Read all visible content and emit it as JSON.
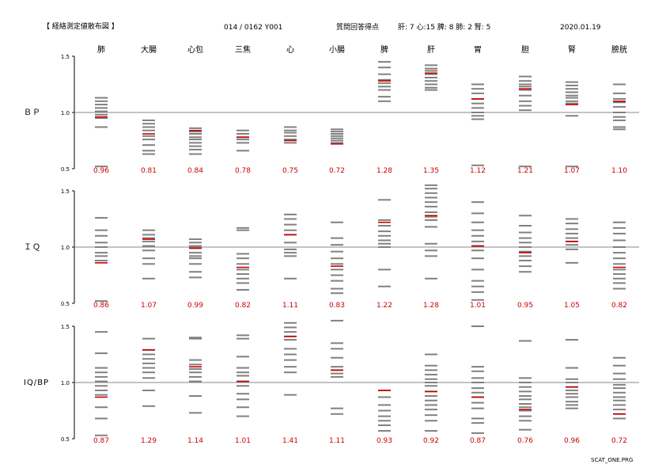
{
  "header": {
    "title": "【 経絡測定値散布図 】",
    "id": "014 / 0162  Y001",
    "score_label": "質問回答得点",
    "scores": "肝: 7 心:15 脾: 8 肺: 2 腎: 5",
    "date": "2020.01.19"
  },
  "footer": "SCAT_ONE.PRG",
  "colors": {
    "marker": "#cc0000",
    "tick": "#808080",
    "value_text": "#cc0000",
    "baseline": "#888888"
  },
  "chart_data": {
    "type": "scatter",
    "categories": [
      "肺",
      "大腸",
      "心包",
      "三焦",
      "心",
      "小腸",
      "脾",
      "肝",
      "胃",
      "胆",
      "腎",
      "膀胱"
    ],
    "ylim": [
      0.5,
      1.5
    ],
    "yticks": [
      "1.5",
      "1.0",
      "0.5"
    ],
    "panels": [
      {
        "label": "ＢＰ",
        "values": [
          0.96,
          0.81,
          0.84,
          0.78,
          0.75,
          0.72,
          1.28,
          1.35,
          1.12,
          1.21,
          1.07,
          1.1
        ],
        "value_labels": [
          "0.96",
          "0.81",
          "0.84",
          "0.78",
          "0.75",
          "0.72",
          "1.28",
          "1.35",
          "1.12",
          "1.21",
          "1.07",
          "1.10"
        ],
        "distributions": [
          [
            1.13,
            1.1,
            1.07,
            1.04,
            1.01,
            0.98,
            0.95,
            0.87,
            0.52
          ],
          [
            0.93,
            0.9,
            0.87,
            0.84,
            0.79,
            0.76,
            0.71,
            0.66,
            0.63
          ],
          [
            0.86,
            0.83,
            0.81,
            0.78,
            0.76,
            0.73,
            0.7,
            0.67,
            0.63
          ],
          [
            0.84,
            0.81,
            0.78,
            0.76,
            0.73,
            0.66
          ],
          [
            0.87,
            0.84,
            0.82,
            0.79,
            0.76,
            0.73
          ],
          [
            0.85,
            0.83,
            0.81,
            0.79,
            0.77,
            0.75,
            0.73
          ],
          [
            1.45,
            1.4,
            1.34,
            1.29,
            1.26,
            1.23,
            1.2,
            1.14,
            1.1
          ],
          [
            1.42,
            1.39,
            1.37,
            1.34,
            1.31,
            1.28,
            1.25,
            1.22,
            1.2
          ],
          [
            1.25,
            1.21,
            1.17,
            1.12,
            1.08,
            1.04,
            1.0,
            0.97,
            0.94,
            0.53
          ],
          [
            1.32,
            1.28,
            1.25,
            1.23,
            1.2,
            1.15,
            1.1,
            1.06,
            1.02,
            0.52
          ],
          [
            1.27,
            1.24,
            1.21,
            1.18,
            1.15,
            1.13,
            1.1,
            1.08,
            0.97,
            0.52
          ],
          [
            1.25,
            1.17,
            1.12,
            1.09,
            1.05,
            1.0,
            0.96,
            0.93,
            0.87,
            0.85
          ]
        ]
      },
      {
        "label": "ＩＱ",
        "values": [
          0.86,
          1.07,
          0.99,
          0.82,
          1.11,
          0.83,
          1.22,
          1.28,
          1.01,
          0.95,
          1.05,
          0.82
        ],
        "value_labels": [
          "0.86",
          "1.07",
          "0.99",
          "0.82",
          "1.11",
          "0.83",
          "1.22",
          "1.28",
          "1.01",
          "0.95",
          "1.05",
          "0.82"
        ],
        "distributions": [
          [
            1.26,
            1.15,
            1.1,
            1.04,
            1.0,
            0.95,
            0.92,
            0.88,
            0.52
          ],
          [
            1.15,
            1.11,
            1.08,
            1.05,
            1.01,
            0.97,
            0.9,
            0.85,
            0.72
          ],
          [
            1.07,
            1.04,
            1.01,
            0.99,
            0.95,
            0.92,
            0.9,
            0.85,
            0.78,
            0.73
          ],
          [
            1.17,
            1.15,
            0.94,
            0.9,
            0.85,
            0.8,
            0.76,
            0.72,
            0.68,
            0.62
          ],
          [
            1.29,
            1.25,
            1.2,
            1.15,
            1.11,
            1.04,
            0.98,
            0.95,
            0.92,
            0.72
          ],
          [
            1.22,
            1.08,
            1.02,
            0.96,
            0.9,
            0.85,
            0.8,
            0.75,
            0.7,
            0.63,
            0.59
          ],
          [
            1.42,
            1.24,
            1.19,
            1.14,
            1.1,
            1.06,
            1.03,
            1.0,
            0.8,
            0.65
          ],
          [
            1.55,
            1.52,
            1.48,
            1.44,
            1.4,
            1.36,
            1.31,
            1.27,
            1.24,
            1.18,
            1.03,
            0.97,
            0.92,
            0.72
          ],
          [
            1.4,
            1.3,
            1.22,
            1.15,
            1.1,
            1.05,
            1.01,
            0.97,
            0.9,
            0.8,
            0.7,
            0.65,
            0.6,
            0.53
          ],
          [
            1.28,
            1.19,
            1.13,
            1.08,
            1.04,
            1.0,
            0.96,
            0.92,
            0.88,
            0.83,
            0.78
          ],
          [
            1.25,
            1.21,
            1.16,
            1.12,
            1.08,
            1.05,
            1.02,
            0.98,
            0.86
          ],
          [
            1.22,
            1.17,
            1.12,
            1.06,
            1.0,
            0.95,
            0.9,
            0.85,
            0.8,
            0.76,
            0.72,
            0.68,
            0.63
          ]
        ]
      },
      {
        "label": "IQ/BP",
        "values": [
          0.87,
          1.29,
          1.14,
          1.01,
          1.41,
          1.11,
          0.93,
          0.92,
          0.87,
          0.76,
          0.96,
          0.72
        ],
        "value_labels": [
          "0.87",
          "1.29",
          "1.14",
          "1.01",
          "1.41",
          "1.11",
          "0.93",
          "0.92",
          "0.87",
          "0.76",
          "0.96",
          "0.72"
        ],
        "distributions": [
          [
            1.45,
            1.26,
            1.13,
            1.09,
            1.05,
            1.01,
            0.97,
            0.93,
            0.89,
            0.78,
            0.68,
            0.53
          ],
          [
            1.39,
            1.29,
            1.25,
            1.21,
            1.17,
            1.13,
            1.09,
            1.04,
            0.93,
            0.79
          ],
          [
            1.4,
            1.39,
            1.2,
            1.16,
            1.12,
            1.09,
            1.05,
            1.01,
            0.88,
            0.73
          ],
          [
            1.42,
            1.39,
            1.23,
            1.13,
            1.09,
            1.06,
            1.01,
            0.97,
            0.9,
            0.85,
            0.78,
            0.7
          ],
          [
            1.53,
            1.49,
            1.45,
            1.41,
            1.38,
            1.3,
            1.25,
            1.2,
            1.14,
            1.09,
            0.89
          ],
          [
            1.55,
            1.35,
            1.3,
            1.22,
            1.14,
            1.11,
            1.08,
            1.05,
            0.77,
            0.72
          ],
          [
            0.93,
            0.87,
            0.8,
            0.75,
            0.7,
            0.66,
            0.62,
            0.57
          ],
          [
            1.25,
            1.15,
            1.11,
            1.07,
            1.03,
            1.0,
            0.97,
            0.92,
            0.88,
            0.84,
            0.8,
            0.76,
            0.71,
            0.66,
            0.57
          ],
          [
            1.5,
            1.14,
            1.1,
            1.04,
            1.0,
            0.95,
            0.91,
            0.87,
            0.82,
            0.77,
            0.68,
            0.64,
            0.55
          ],
          [
            1.37,
            1.04,
            1.0,
            0.96,
            0.92,
            0.88,
            0.85,
            0.81,
            0.78,
            0.75,
            0.7,
            0.66,
            0.58
          ],
          [
            1.38,
            1.13,
            1.03,
            1.0,
            0.96,
            0.93,
            0.9,
            0.87,
            0.83,
            0.8,
            0.77
          ],
          [
            1.22,
            1.15,
            1.08,
            1.03,
            0.98,
            0.95,
            0.91,
            0.87,
            0.84,
            0.8,
            0.76,
            0.72,
            0.68
          ]
        ]
      }
    ]
  }
}
